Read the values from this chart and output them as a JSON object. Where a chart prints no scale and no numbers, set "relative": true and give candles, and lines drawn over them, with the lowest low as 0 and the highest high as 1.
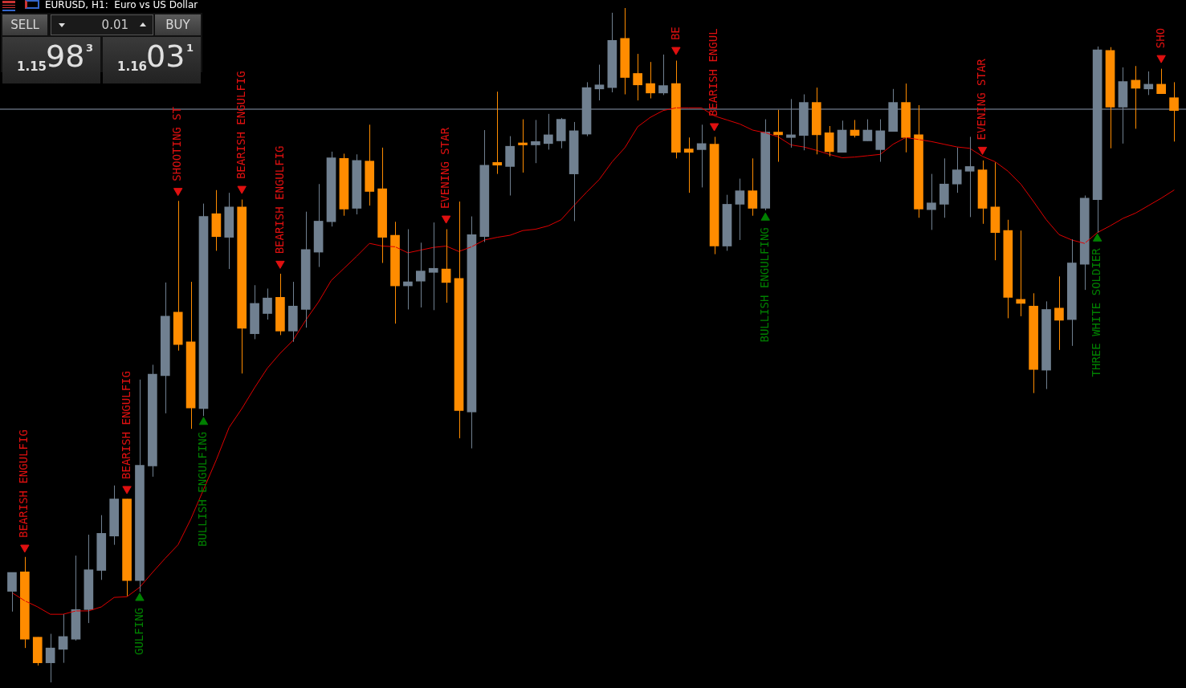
{
  "chart_data": {
    "type": "candlestick",
    "title": "EURUSD, H1:  Euro vs US Dollar",
    "relative": true,
    "categories": [
      null,
      null,
      null,
      null,
      null,
      null,
      null,
      null,
      null,
      null,
      null,
      null,
      null,
      null,
      null,
      null,
      null,
      null,
      null,
      null,
      null,
      null,
      null,
      null,
      null,
      null,
      null,
      null,
      null,
      null,
      null,
      null,
      null,
      null,
      null,
      null,
      null,
      null,
      null,
      null,
      null,
      null,
      null,
      null,
      null,
      null,
      null,
      null,
      null,
      null,
      null,
      null,
      null,
      null,
      null,
      null,
      null,
      null,
      null,
      null,
      null,
      null,
      null,
      null,
      null,
      null,
      null,
      null,
      null,
      null,
      null,
      null,
      null,
      null,
      null,
      null,
      null,
      null,
      null,
      null,
      null,
      null,
      null,
      null,
      null,
      null,
      null,
      null,
      null,
      null,
      null,
      null
    ],
    "annotations": [
      "SELL",
      "0.01",
      "BUY",
      "1.15",
      "98",
      "3",
      "1.16",
      "03",
      "1"
    ],
    "ref_lines": [
      {
        "axis": "y",
        "value": 0.85,
        "color": "#8c9ab0"
      }
    ],
    "series": [
      {
        "type": "candlestick",
        "ohlc": [
          [
            0.135,
            0.163,
            0.105,
            0.163
          ],
          [
            0.164,
            0.186,
            0.051,
            0.064
          ],
          [
            0.067,
            0.067,
            0.025,
            0.029
          ],
          [
            0.029,
            0.072,
            0,
            0.051
          ],
          [
            0.049,
            0.101,
            0.029,
            0.068
          ],
          [
            0.064,
            0.188,
            0.062,
            0.108
          ],
          [
            0.108,
            0.219,
            0.088,
            0.167
          ],
          [
            0.166,
            0.248,
            0.152,
            0.221
          ],
          [
            0.217,
            0.292,
            0.204,
            0.272
          ],
          [
            0.272,
            0.272,
            0.128,
            0.151
          ],
          [
            0.151,
            0.449,
            0.134,
            0.322
          ],
          [
            0.321,
            0.471,
            0.305,
            0.457
          ],
          [
            0.455,
            0.593,
            0.399,
            0.543
          ],
          [
            0.549,
            0.714,
            0.492,
            0.501
          ],
          [
            0.505,
            0.594,
            0.376,
            0.407
          ],
          [
            0.406,
            0.71,
            0.395,
            0.691
          ],
          [
            0.695,
            0.73,
            0.64,
            0.661
          ],
          [
            0.66,
            0.726,
            0.613,
            0.705
          ],
          [
            0.705,
            0.716,
            0.458,
            0.525
          ],
          [
            0.517,
            0.589,
            0.509,
            0.562
          ],
          [
            0.547,
            0.584,
            0.538,
            0.57
          ],
          [
            0.571,
            0.606,
            0.515,
            0.521
          ],
          [
            0.521,
            0.594,
            0.505,
            0.558
          ],
          [
            0.553,
            0.698,
            0.526,
            0.642
          ],
          [
            0.638,
            0.739,
            0.616,
            0.684
          ],
          [
            0.683,
            0.787,
            0.676,
            0.778
          ],
          [
            0.777,
            0.784,
            0.692,
            0.702
          ],
          [
            0.703,
            0.783,
            0.694,
            0.774
          ],
          [
            0.773,
            0.827,
            0.707,
            0.728
          ],
          [
            0.732,
            0.793,
            0.622,
            0.66
          ],
          [
            0.663,
            0.683,
            0.532,
            0.588
          ],
          [
            0.588,
            0.672,
            0.553,
            0.594
          ],
          [
            0.595,
            0.652,
            0.556,
            0.61
          ],
          [
            0.608,
            0.682,
            0.552,
            0.614
          ],
          [
            0.613,
            0.672,
            0.563,
            0.593
          ],
          [
            0.599,
            0.713,
            0.362,
            0.403
          ],
          [
            0.401,
            0.691,
            0.347,
            0.664
          ],
          [
            0.661,
            0.819,
            0.653,
            0.767
          ],
          [
            0.771,
            0.876,
            0.754,
            0.767
          ],
          [
            0.765,
            0.81,
            0.722,
            0.795
          ],
          [
            0.8,
            0.835,
            0.756,
            0.797
          ],
          [
            0.797,
            0.834,
            0.77,
            0.802
          ],
          [
            0.799,
            0.843,
            0.79,
            0.812
          ],
          [
            0.803,
            0.837,
            0.792,
            0.835
          ],
          [
            0.754,
            0.831,
            0.684,
            0.818
          ],
          [
            0.813,
            0.89,
            0.81,
            0.882
          ],
          [
            0.88,
            0.916,
            0.863,
            0.886
          ],
          [
            0.882,
            0.993,
            0.875,
            0.952
          ],
          [
            0.955,
            1,
            0.872,
            0.897
          ],
          [
            0.903,
            0.932,
            0.863,
            0.886
          ],
          [
            0.888,
            0.92,
            0.866,
            0.874
          ],
          [
            0.874,
            0.931,
            0.871,
            0.885
          ],
          [
            0.888,
            0.922,
            0.777,
            0.786
          ],
          [
            0.791,
            0.808,
            0.726,
            0.786
          ],
          [
            0.79,
            0.827,
            0.734,
            0.799
          ],
          [
            0.798,
            0.809,
            0.635,
            0.647
          ],
          [
            0.647,
            0.723,
            0.64,
            0.709
          ],
          [
            0.709,
            0.747,
            0.656,
            0.729
          ],
          [
            0.729,
            0.777,
            0.692,
            0.703
          ],
          [
            0.703,
            0.835,
            0.7,
            0.816
          ],
          [
            0.816,
            0.849,
            0.772,
            0.812
          ],
          [
            0.808,
            0.865,
            0.793,
            0.812
          ],
          [
            0.811,
            0.872,
            0.789,
            0.86
          ],
          [
            0.86,
            0.882,
            0.783,
            0.812
          ],
          [
            0.815,
            0.825,
            0.78,
            0.787
          ],
          [
            0.786,
            0.833,
            0.786,
            0.819
          ],
          [
            0.819,
            0.834,
            0.808,
            0.811
          ],
          [
            0.803,
            0.835,
            0.803,
            0.819
          ],
          [
            0.79,
            0.835,
            0.772,
            0.818
          ],
          [
            0.817,
            0.88,
            0.817,
            0.86
          ],
          [
            0.86,
            0.888,
            0.786,
            0.808
          ],
          [
            0.812,
            0.856,
            0.689,
            0.702
          ],
          [
            0.701,
            0.754,
            0.671,
            0.711
          ],
          [
            0.709,
            0.777,
            0.689,
            0.739
          ],
          [
            0.739,
            0.793,
            0.726,
            0.76
          ],
          [
            0.758,
            0.809,
            0.69,
            0.765
          ],
          [
            0.76,
            0.774,
            0.68,
            0.703
          ],
          [
            0.705,
            0.771,
            0.626,
            0.667
          ],
          [
            0.67,
            0.686,
            0.54,
            0.571
          ],
          [
            0.568,
            0.67,
            0.543,
            0.562
          ],
          [
            0.558,
            0.577,
            0.429,
            0.464
          ],
          [
            0.463,
            0.565,
            0.435,
            0.553
          ],
          [
            0.555,
            0.602,
            0.493,
            0.537
          ],
          [
            0.538,
            0.657,
            0.499,
            0.622
          ],
          [
            0.62,
            0.722,
            0.582,
            0.718
          ],
          [
            0.716,
            0.943,
            0.667,
            0.938
          ],
          [
            0.937,
            0.942,
            0.792,
            0.853
          ],
          [
            0.853,
            0.912,
            0.799,
            0.891
          ],
          [
            0.893,
            0.914,
            0.821,
            0.881
          ],
          [
            0.88,
            0.906,
            0.871,
            0.887
          ],
          [
            0.887,
            0.91,
            0.873,
            0.873
          ],
          [
            0.867,
            0.89,
            0.802,
            0.848
          ]
        ],
        "colors": [
          "#708090",
          "#ff8c00",
          "#ff8c00",
          "#708090",
          "#708090",
          "#708090",
          "#708090",
          "#708090",
          "#708090",
          "#ff8c00",
          "#708090",
          "#708090",
          "#708090",
          "#ff8c00",
          "#ff8c00",
          "#708090",
          "#ff8c00",
          "#708090",
          "#ff8c00",
          "#708090",
          "#708090",
          "#ff8c00",
          "#708090",
          "#708090",
          "#708090",
          "#708090",
          "#ff8c00",
          "#708090",
          "#ff8c00",
          "#ff8c00",
          "#ff8c00",
          "#708090",
          "#708090",
          "#708090",
          "#ff8c00",
          "#ff8c00",
          "#708090",
          "#708090",
          "#ff8c00",
          "#708090",
          "#ff8c00",
          "#708090",
          "#708090",
          "#708090",
          "#708090",
          "#708090",
          "#708090",
          "#708090",
          "#ff8c00",
          "#ff8c00",
          "#ff8c00",
          "#708090",
          "#ff8c00",
          "#ff8c00",
          "#708090",
          "#ff8c00",
          "#708090",
          "#708090",
          "#ff8c00",
          "#708090",
          "#ff8c00",
          "#708090",
          "#708090",
          "#ff8c00",
          "#ff8c00",
          "#708090",
          "#ff8c00",
          "#708090",
          "#708090",
          "#708090",
          "#ff8c00",
          "#ff8c00",
          "#708090",
          "#708090",
          "#708090",
          "#708090",
          "#ff8c00",
          "#ff8c00",
          "#ff8c00",
          "#ff8c00",
          "#ff8c00",
          "#708090",
          "#ff8c00",
          "#708090",
          "#708090",
          "#708090",
          "#ff8c00",
          "#708090",
          "#ff8c00",
          "#708090",
          "#ff8c00",
          "#ff8c00"
        ]
      },
      {
        "type": "line",
        "color": "#e00000",
        "values": [
          0.133,
          0.121,
          0.112,
          0.101,
          0.101,
          0.106,
          0.106,
          0.112,
          0.126,
          0.127,
          0.141,
          0.163,
          0.184,
          0.204,
          0.242,
          0.286,
          0.33,
          0.378,
          0.406,
          0.437,
          0.466,
          0.488,
          0.507,
          0.537,
          0.564,
          0.596,
          0.614,
          0.632,
          0.651,
          0.647,
          0.646,
          0.637,
          0.641,
          0.645,
          0.647,
          0.639,
          0.646,
          0.656,
          0.66,
          0.663,
          0.67,
          0.672,
          0.677,
          0.686,
          0.707,
          0.727,
          0.746,
          0.772,
          0.793,
          0.824,
          0.838,
          0.848,
          0.852,
          0.852,
          0.852,
          0.84,
          0.834,
          0.828,
          0.819,
          0.815,
          0.809,
          0.797,
          0.794,
          0.789,
          0.783,
          0.778,
          0.779,
          0.781,
          0.783,
          0.798,
          0.808,
          0.805,
          0.802,
          0.798,
          0.794,
          0.792,
          0.78,
          0.772,
          0.758,
          0.739,
          0.713,
          0.686,
          0.664,
          0.656,
          0.651,
          0.667,
          0.677,
          0.688,
          0.696,
          0.707,
          0.718,
          0.73
        ]
      },
      {
        "type": "scatter",
        "name": "BEARISH ENGULFIG",
        "color": "#e01010",
        "marker": "triangle",
        "values": [
          null,
          0.2,
          null,
          null,
          null,
          null,
          null,
          null,
          null,
          null,
          null,
          null,
          null,
          null,
          null,
          null,
          null,
          null,
          null,
          null,
          null,
          null,
          null,
          null,
          null,
          null,
          null,
          null,
          null,
          null,
          null,
          null,
          null,
          null,
          null,
          null,
          null,
          null,
          null,
          null,
          null,
          null,
          null,
          null,
          null,
          null,
          null,
          null,
          null,
          null,
          null,
          null,
          null,
          null,
          null,
          null,
          null,
          null,
          null,
          null,
          null,
          null,
          null,
          null,
          null,
          null,
          null,
          null,
          null,
          null,
          null,
          null,
          null,
          null,
          null,
          null,
          null,
          null,
          null,
          null,
          null,
          null,
          null,
          null,
          null,
          null,
          null,
          null,
          null,
          null,
          null,
          null
        ]
      },
      {
        "type": "scatter",
        "name": "BEARISH ENGULFIG",
        "color": "#e01010",
        "marker": "triangle",
        "values": [
          null,
          null,
          null,
          null,
          null,
          null,
          null,
          null,
          null,
          0.287,
          null,
          null,
          null,
          null,
          null,
          null,
          null,
          null,
          null,
          null,
          null,
          null,
          null,
          null,
          null,
          null,
          null,
          null,
          null,
          null,
          null,
          null,
          null,
          null,
          null,
          null,
          null,
          null,
          null,
          null,
          null,
          null,
          null,
          null,
          null,
          null,
          null,
          null,
          null,
          null,
          null,
          null,
          null,
          null,
          null,
          null,
          null,
          null,
          null,
          null,
          null,
          null,
          null,
          null,
          null,
          null,
          null,
          null,
          null,
          null,
          null,
          null,
          null,
          null,
          null,
          null,
          null,
          null,
          null,
          null,
          null,
          null,
          null,
          null,
          null,
          null,
          null,
          null,
          null,
          null,
          null,
          null
        ]
      },
      {
        "type": "scatter",
        "name": "GULFING",
        "color": "#008000",
        "marker": "triangle",
        "values": [
          null,
          null,
          null,
          null,
          null,
          null,
          null,
          null,
          null,
          null,
          0.125,
          null,
          null,
          null,
          null,
          null,
          null,
          null,
          null,
          null,
          null,
          null,
          null,
          null,
          null,
          null,
          null,
          null,
          null,
          null,
          null,
          null,
          null,
          null,
          null,
          null,
          null,
          null,
          null,
          null,
          null,
          null,
          null,
          null,
          null,
          null,
          null,
          null,
          null,
          null,
          null,
          null,
          null,
          null,
          null,
          null,
          null,
          null,
          null,
          null,
          null,
          null,
          null,
          null,
          null,
          null,
          null,
          null,
          null,
          null,
          null,
          null,
          null,
          null,
          null,
          null,
          null,
          null,
          null,
          null,
          null,
          null,
          null,
          null,
          null,
          null,
          null,
          null,
          null,
          null,
          null,
          null
        ]
      },
      {
        "type": "scatter",
        "name": "SHOOTING ST",
        "color": "#e01010",
        "marker": "triangle",
        "values": [
          null,
          null,
          null,
          null,
          null,
          null,
          null,
          null,
          null,
          null,
          null,
          null,
          null,
          0.729,
          null,
          null,
          null,
          null,
          null,
          null,
          null,
          null,
          null,
          null,
          null,
          null,
          null,
          null,
          null,
          null,
          null,
          null,
          null,
          null,
          null,
          null,
          null,
          null,
          null,
          null,
          null,
          null,
          null,
          null,
          null,
          null,
          null,
          null,
          null,
          null,
          null,
          null,
          null,
          null,
          null,
          null,
          null,
          null,
          null,
          null,
          null,
          null,
          null,
          null,
          null,
          null,
          null,
          null,
          null,
          null,
          null,
          null,
          null,
          null,
          null,
          null,
          null,
          null,
          null,
          null,
          null,
          null,
          null,
          null,
          null,
          null,
          null,
          null,
          null,
          null,
          null,
          null
        ]
      },
      {
        "type": "scatter",
        "name": "BULLISH ENGULFING",
        "color": "#008000",
        "marker": "triangle",
        "values": [
          null,
          null,
          null,
          null,
          null,
          null,
          null,
          null,
          null,
          null,
          null,
          null,
          null,
          null,
          null,
          0.386,
          null,
          null,
          null,
          null,
          null,
          null,
          null,
          null,
          null,
          null,
          null,
          null,
          null,
          null,
          null,
          null,
          null,
          null,
          null,
          null,
          null,
          null,
          null,
          null,
          null,
          null,
          null,
          null,
          null,
          null,
          null,
          null,
          null,
          null,
          null,
          null,
          null,
          null,
          null,
          null,
          null,
          null,
          null,
          null,
          null,
          null,
          null,
          null,
          null,
          null,
          null,
          null,
          null,
          null,
          null,
          null,
          null,
          null,
          null,
          null,
          null,
          null,
          null,
          null,
          null,
          null,
          null,
          null,
          null,
          null,
          null,
          null,
          null,
          null,
          null,
          null
        ]
      },
      {
        "type": "scatter",
        "name": "BEARISH ENGULFIG",
        "color": "#e01010",
        "marker": "triangle",
        "values": [
          null,
          null,
          null,
          null,
          null,
          null,
          null,
          null,
          null,
          null,
          null,
          null,
          null,
          null,
          null,
          null,
          null,
          null,
          0.732,
          null,
          null,
          null,
          null,
          null,
          null,
          null,
          null,
          null,
          null,
          null,
          null,
          null,
          null,
          null,
          null,
          null,
          null,
          null,
          null,
          null,
          null,
          null,
          null,
          null,
          null,
          null,
          null,
          null,
          null,
          null,
          null,
          null,
          null,
          null,
          null,
          null,
          null,
          null,
          null,
          null,
          null,
          null,
          null,
          null,
          null,
          null,
          null,
          null,
          null,
          null,
          null,
          null,
          null,
          null,
          null,
          null,
          null,
          null,
          null,
          null,
          null,
          null,
          null,
          null,
          null,
          null,
          null,
          null,
          null,
          null,
          null,
          null
        ]
      },
      {
        "type": "scatter",
        "name": "BEARISH ENGULFIG",
        "color": "#e01010",
        "marker": "triangle",
        "values": [
          null,
          null,
          null,
          null,
          null,
          null,
          null,
          null,
          null,
          null,
          null,
          null,
          null,
          null,
          null,
          null,
          null,
          null,
          null,
          null,
          null,
          0.621,
          null,
          null,
          null,
          null,
          null,
          null,
          null,
          null,
          null,
          null,
          null,
          null,
          null,
          null,
          null,
          null,
          null,
          null,
          null,
          null,
          null,
          null,
          null,
          null,
          null,
          null,
          null,
          null,
          null,
          null,
          null,
          null,
          null,
          null,
          null,
          null,
          null,
          null,
          null,
          null,
          null,
          null,
          null,
          null,
          null,
          null,
          null,
          null,
          null,
          null,
          null,
          null,
          null,
          null,
          null,
          null,
          null,
          null,
          null,
          null,
          null,
          null,
          null,
          null,
          null,
          null,
          null,
          null,
          null,
          null
        ]
      },
      {
        "type": "scatter",
        "name": "EVENING STAR",
        "color": "#e01010",
        "marker": "triangle",
        "values": [
          null,
          null,
          null,
          null,
          null,
          null,
          null,
          null,
          null,
          null,
          null,
          null,
          null,
          null,
          null,
          null,
          null,
          null,
          null,
          null,
          null,
          null,
          null,
          null,
          null,
          null,
          null,
          null,
          null,
          null,
          null,
          null,
          null,
          null,
          0.688,
          null,
          null,
          null,
          null,
          null,
          null,
          null,
          null,
          null,
          null,
          null,
          null,
          null,
          null,
          null,
          null,
          null,
          null,
          null,
          null,
          null,
          null,
          null,
          null,
          null,
          null,
          null,
          null,
          null,
          null,
          null,
          null,
          null,
          null,
          null,
          null,
          null,
          null,
          null,
          null,
          null,
          null,
          null,
          null,
          null,
          null,
          null,
          null,
          null,
          null,
          null,
          null,
          null,
          null,
          null,
          null,
          null
        ]
      },
      {
        "type": "scatter",
        "name": "BE",
        "color": "#e01010",
        "marker": "triangle",
        "values": [
          null,
          null,
          null,
          null,
          null,
          null,
          null,
          null,
          null,
          null,
          null,
          null,
          null,
          null,
          null,
          null,
          null,
          null,
          null,
          null,
          null,
          null,
          null,
          null,
          null,
          null,
          null,
          null,
          null,
          null,
          null,
          null,
          null,
          null,
          null,
          null,
          null,
          null,
          null,
          null,
          null,
          null,
          null,
          null,
          null,
          null,
          null,
          null,
          null,
          null,
          null,
          null,
          0.938,
          null,
          null,
          null,
          null,
          null,
          null,
          null,
          null,
          null,
          null,
          null,
          null,
          null,
          null,
          null,
          null,
          null,
          null,
          null,
          null,
          null,
          null,
          null,
          null,
          null,
          null,
          null,
          null,
          null,
          null,
          null,
          null,
          null,
          null,
          null,
          null,
          null,
          null,
          null
        ]
      },
      {
        "type": "scatter",
        "name": "BEARISH ENGUL",
        "color": "#e01010",
        "marker": "triangle",
        "values": [
          null,
          null,
          null,
          null,
          null,
          null,
          null,
          null,
          null,
          null,
          null,
          null,
          null,
          null,
          null,
          null,
          null,
          null,
          null,
          null,
          null,
          null,
          null,
          null,
          null,
          null,
          null,
          null,
          null,
          null,
          null,
          null,
          null,
          null,
          null,
          null,
          null,
          null,
          null,
          null,
          null,
          null,
          null,
          null,
          null,
          null,
          null,
          null,
          null,
          null,
          null,
          null,
          null,
          null,
          null,
          0.825,
          null,
          null,
          null,
          null,
          null,
          null,
          null,
          null,
          null,
          null,
          null,
          null,
          null,
          null,
          null,
          null,
          null,
          null,
          null,
          null,
          null,
          null,
          null,
          null,
          null,
          null,
          null,
          null,
          null,
          null,
          null,
          null,
          null,
          null,
          null,
          null
        ]
      },
      {
        "type": "scatter",
        "name": "BULLISH ENGULFING",
        "color": "#008000",
        "marker": "triangle",
        "values": [
          null,
          null,
          null,
          null,
          null,
          null,
          null,
          null,
          null,
          null,
          null,
          null,
          null,
          null,
          null,
          null,
          null,
          null,
          null,
          null,
          null,
          null,
          null,
          null,
          null,
          null,
          null,
          null,
          null,
          null,
          null,
          null,
          null,
          null,
          null,
          null,
          null,
          null,
          null,
          null,
          null,
          null,
          null,
          null,
          null,
          null,
          null,
          null,
          null,
          null,
          null,
          null,
          null,
          null,
          null,
          null,
          null,
          null,
          null,
          0.689,
          null,
          null,
          null,
          null,
          null,
          null,
          null,
          null,
          null,
          null,
          null,
          null,
          null,
          null,
          null,
          null,
          null,
          null,
          null,
          null,
          null,
          null,
          null,
          null,
          null,
          null,
          null,
          null,
          null,
          null,
          null,
          null
        ]
      },
      {
        "type": "scatter",
        "name": "EVENING STAR",
        "color": "#e01010",
        "marker": "triangle",
        "values": [
          null,
          null,
          null,
          null,
          null,
          null,
          null,
          null,
          null,
          null,
          null,
          null,
          null,
          null,
          null,
          null,
          null,
          null,
          null,
          null,
          null,
          null,
          null,
          null,
          null,
          null,
          null,
          null,
          null,
          null,
          null,
          null,
          null,
          null,
          null,
          null,
          null,
          null,
          null,
          null,
          null,
          null,
          null,
          null,
          null,
          null,
          null,
          null,
          null,
          null,
          null,
          null,
          null,
          null,
          null,
          null,
          null,
          null,
          null,
          null,
          null,
          null,
          null,
          null,
          null,
          null,
          null,
          null,
          null,
          null,
          null,
          null,
          null,
          null,
          null,
          null,
          0.79,
          null,
          null,
          null,
          null,
          null,
          null,
          null,
          null,
          null,
          null,
          null,
          null,
          null,
          null,
          null
        ]
      },
      {
        "type": "scatter",
        "name": "THREE WHITE SOLDIER",
        "color": "#008000",
        "marker": "triangle",
        "values": [
          null,
          null,
          null,
          null,
          null,
          null,
          null,
          null,
          null,
          null,
          null,
          null,
          null,
          null,
          null,
          null,
          null,
          null,
          null,
          null,
          null,
          null,
          null,
          null,
          null,
          null,
          null,
          null,
          null,
          null,
          null,
          null,
          null,
          null,
          null,
          null,
          null,
          null,
          null,
          null,
          null,
          null,
          null,
          null,
          null,
          null,
          null,
          null,
          null,
          null,
          null,
          null,
          null,
          null,
          null,
          null,
          null,
          null,
          null,
          null,
          null,
          null,
          null,
          null,
          null,
          null,
          null,
          null,
          null,
          null,
          null,
          null,
          null,
          null,
          null,
          null,
          null,
          null,
          null,
          null,
          null,
          null,
          null,
          null,
          null,
          0.658,
          null,
          null,
          null,
          null,
          null,
          null
        ]
      },
      {
        "type": "scatter",
        "name": "SHO",
        "color": "#e01010",
        "marker": "triangle",
        "values": [
          null,
          null,
          null,
          null,
          null,
          null,
          null,
          null,
          null,
          null,
          null,
          null,
          null,
          null,
          null,
          null,
          null,
          null,
          null,
          null,
          null,
          null,
          null,
          null,
          null,
          null,
          null,
          null,
          null,
          null,
          null,
          null,
          null,
          null,
          null,
          null,
          null,
          null,
          null,
          null,
          null,
          null,
          null,
          null,
          null,
          null,
          null,
          null,
          null,
          null,
          null,
          null,
          null,
          null,
          null,
          null,
          null,
          null,
          null,
          null,
          null,
          null,
          null,
          null,
          null,
          null,
          null,
          null,
          null,
          null,
          null,
          null,
          null,
          null,
          null,
          null,
          null,
          null,
          null,
          null,
          null,
          null,
          null,
          null,
          null,
          null,
          null,
          null,
          null,
          null,
          0.926,
          null
        ]
      }
    ]
  }
}
